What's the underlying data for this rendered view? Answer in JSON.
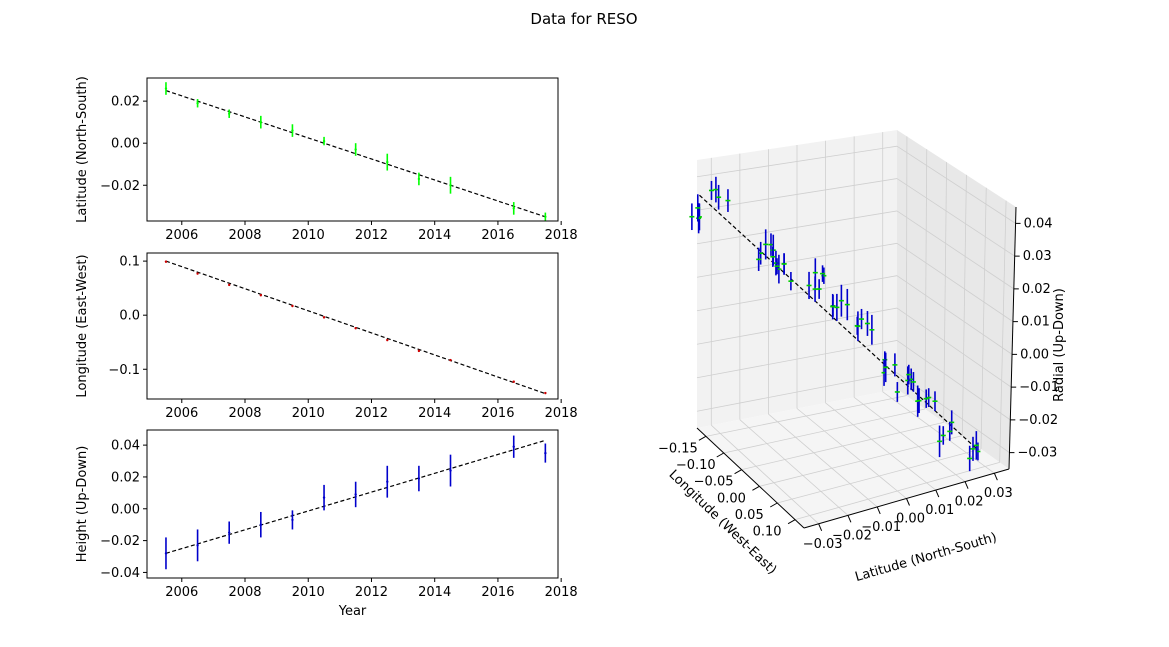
{
  "figure": {
    "title": "Data for RESO"
  },
  "chart_data": [
    {
      "type": "scatter",
      "panel": "latitude-vs-year",
      "title": "",
      "xlabel": "",
      "ylabel": "Latitude (North-South)",
      "xlim": [
        2004.9,
        2017.9
      ],
      "ylim": [
        -0.037,
        0.031
      ],
      "xticks": [
        "2006",
        "2008",
        "2010",
        "2012",
        "2014",
        "2016",
        "2018"
      ],
      "yticks": [
        "0.02",
        "0.00",
        "−0.02"
      ],
      "ytick_values": [
        0.02,
        0.0,
        -0.02
      ],
      "color": "#00ff00",
      "x": [
        2005.5,
        2006.5,
        2007.5,
        2008.5,
        2009.5,
        2010.5,
        2011.5,
        2012.5,
        2013.5,
        2014.5,
        2016.5,
        2017.5
      ],
      "y": [
        0.026,
        0.019,
        0.014,
        0.01,
        0.006,
        0.001,
        -0.003,
        -0.009,
        -0.017,
        -0.02,
        -0.031,
        -0.035
      ],
      "yerr": [
        0.003,
        0.002,
        0.002,
        0.003,
        0.003,
        0.002,
        0.003,
        0.004,
        0.003,
        0.004,
        0.003,
        0.002
      ],
      "fit": {
        "x": [
          2005.5,
          2017.5
        ],
        "y": [
          0.025,
          -0.035
        ]
      }
    },
    {
      "type": "scatter",
      "panel": "longitude-vs-year",
      "title": "",
      "xlabel": "",
      "ylabel": "Longitude (East-West)",
      "xlim": [
        2004.9,
        2017.9
      ],
      "ylim": [
        -0.155,
        0.115
      ],
      "xticks": [
        "2006",
        "2008",
        "2010",
        "2012",
        "2014",
        "2016",
        "2018"
      ],
      "yticks": [
        "0.1",
        "0.0",
        "−0.1"
      ],
      "ytick_values": [
        0.1,
        0.0,
        -0.1
      ],
      "color": "#cc0000",
      "x": [
        2005.5,
        2006.5,
        2007.5,
        2008.5,
        2009.5,
        2010.5,
        2011.5,
        2012.5,
        2013.5,
        2014.5,
        2016.5,
        2017.5
      ],
      "y": [
        0.099,
        0.077,
        0.056,
        0.037,
        0.017,
        -0.004,
        -0.024,
        -0.046,
        -0.066,
        -0.083,
        -0.123,
        -0.144
      ],
      "yerr": [
        0.002,
        0.002,
        0.002,
        0.002,
        0.002,
        0.002,
        0.002,
        0.002,
        0.002,
        0.002,
        0.002,
        0.002
      ],
      "fit": {
        "x": [
          2005.5,
          2017.5
        ],
        "y": [
          0.1,
          -0.145
        ]
      }
    },
    {
      "type": "scatter",
      "panel": "height-vs-year",
      "title": "",
      "xlabel": "Year",
      "ylabel": "Height (Up-Down)",
      "xlim": [
        2004.9,
        2017.9
      ],
      "ylim": [
        -0.0435,
        0.0495
      ],
      "xticks": [
        "2006",
        "2008",
        "2010",
        "2012",
        "2014",
        "2016",
        "2018"
      ],
      "yticks": [
        "0.04",
        "0.02",
        "0.00",
        "−0.02",
        "−0.04"
      ],
      "ytick_values": [
        0.04,
        0.02,
        0.0,
        -0.02,
        -0.04
      ],
      "color": "#0000cc",
      "x": [
        2005.5,
        2006.5,
        2007.5,
        2008.5,
        2009.5,
        2010.5,
        2011.5,
        2012.5,
        2013.5,
        2014.5,
        2016.5,
        2017.5
      ],
      "y": [
        -0.028,
        -0.023,
        -0.015,
        -0.01,
        -0.007,
        0.007,
        0.009,
        0.017,
        0.019,
        0.024,
        0.039,
        0.035
      ],
      "yerr": [
        0.01,
        0.01,
        0.007,
        0.008,
        0.006,
        0.008,
        0.008,
        0.01,
        0.008,
        0.01,
        0.007,
        0.006
      ],
      "fit": {
        "x": [
          2005.5,
          2017.5
        ],
        "y": [
          -0.028,
          0.043
        ]
      }
    },
    {
      "type": "scatter3d",
      "panel": "3d-trajectory",
      "title": "",
      "xlabel": "Longitude (West-East)",
      "ylabel": "Latitude (North-South)",
      "zlabel": "Radial (Up-Down)",
      "xticks": [
        "−0.15",
        "−0.10",
        "−0.05",
        "0.00",
        "0.05",
        "0.10"
      ],
      "yticks": [
        "−0.03",
        "−0.02",
        "−0.01",
        "0.00",
        "0.01",
        "0.02",
        "0.03"
      ],
      "zticks": [
        "0.04",
        "0.03",
        "0.02",
        "0.01",
        "0.00",
        "−0.01",
        "−0.02",
        "−0.03"
      ],
      "point_color": "#00cc00",
      "errorbar_color": "#0000cc",
      "groups": [
        {
          "longitude": 0.099,
          "latitude": 0.026,
          "radial": -0.028,
          "count": 4
        },
        {
          "longitude": 0.077,
          "latitude": 0.019,
          "radial": -0.023,
          "count": 4
        },
        {
          "longitude": 0.056,
          "latitude": 0.014,
          "radial": -0.015,
          "count": 5
        },
        {
          "longitude": 0.037,
          "latitude": 0.01,
          "radial": -0.01,
          "count": 5
        },
        {
          "longitude": 0.017,
          "latitude": 0.006,
          "radial": -0.007,
          "count": 4
        },
        {
          "longitude": -0.004,
          "latitude": 0.001,
          "radial": 0.007,
          "count": 5
        },
        {
          "longitude": -0.024,
          "latitude": -0.003,
          "radial": 0.009,
          "count": 5
        },
        {
          "longitude": -0.046,
          "latitude": -0.009,
          "radial": 0.017,
          "count": 6
        },
        {
          "longitude": -0.066,
          "latitude": -0.017,
          "radial": 0.019,
          "count": 6
        },
        {
          "longitude": -0.083,
          "latitude": -0.02,
          "radial": 0.024,
          "count": 6
        },
        {
          "longitude": -0.123,
          "latitude": -0.031,
          "radial": 0.039,
          "count": 4
        },
        {
          "longitude": -0.144,
          "latitude": -0.035,
          "radial": 0.035,
          "count": 4
        }
      ]
    }
  ]
}
